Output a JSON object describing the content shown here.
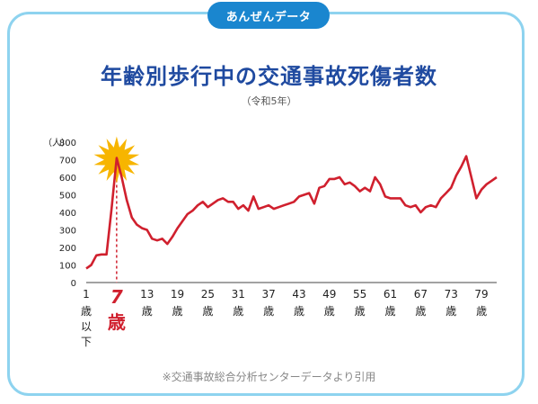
{
  "badge": "あんぜんデータ",
  "title": "年齢別歩行中の交通事故死傷者数",
  "subtitle": "（令和5年）",
  "source": "※交通事故総合分析センターデータより引用",
  "colors": {
    "line": "#d0202e",
    "title": "#1f4aa0",
    "badge": "#1a86cf",
    "border": "#8ed3ef",
    "burst": "#f7b500"
  },
  "chart_data": {
    "type": "line",
    "title": "年齢別歩行中の交通事故死傷者数",
    "subtitle": "（令和5年）",
    "ylabel": "（人）",
    "ylim": [
      0,
      800
    ],
    "yticks": [
      0,
      100,
      200,
      300,
      400,
      500,
      600,
      700,
      800
    ],
    "xlim": [
      1,
      82
    ],
    "xticks": [
      {
        "age": 1,
        "num": "1",
        "lines": [
          "歳",
          "以",
          "下"
        ]
      },
      {
        "age": 13,
        "num": "13",
        "lines": [
          "歳"
        ]
      },
      {
        "age": 19,
        "num": "19",
        "lines": [
          "歳"
        ]
      },
      {
        "age": 25,
        "num": "25",
        "lines": [
          "歳"
        ]
      },
      {
        "age": 31,
        "num": "31",
        "lines": [
          "歳"
        ]
      },
      {
        "age": 37,
        "num": "37",
        "lines": [
          "歳"
        ]
      },
      {
        "age": 43,
        "num": "43",
        "lines": [
          "歳"
        ]
      },
      {
        "age": 49,
        "num": "49",
        "lines": [
          "歳"
        ]
      },
      {
        "age": 55,
        "num": "55",
        "lines": [
          "歳"
        ]
      },
      {
        "age": 61,
        "num": "61",
        "lines": [
          "歳"
        ]
      },
      {
        "age": 67,
        "num": "67",
        "lines": [
          "歳"
        ]
      },
      {
        "age": 73,
        "num": "73",
        "lines": [
          "歳"
        ]
      },
      {
        "age": 79,
        "num": "79",
        "lines": [
          "歳"
        ]
      }
    ],
    "highlight": {
      "age": 7,
      "num": "7",
      "unit": "歳",
      "value": 710
    },
    "grid": false,
    "legend": "none",
    "x": [
      1,
      2,
      3,
      4,
      5,
      6,
      7,
      8,
      9,
      10,
      11,
      12,
      13,
      14,
      15,
      16,
      17,
      18,
      19,
      20,
      21,
      22,
      23,
      24,
      25,
      26,
      27,
      28,
      29,
      30,
      31,
      32,
      33,
      34,
      35,
      36,
      37,
      38,
      39,
      40,
      41,
      42,
      43,
      44,
      45,
      46,
      47,
      48,
      49,
      50,
      51,
      52,
      53,
      54,
      55,
      56,
      57,
      58,
      59,
      60,
      61,
      62,
      63,
      64,
      65,
      66,
      67,
      68,
      69,
      70,
      71,
      72,
      73,
      74,
      75,
      76,
      77,
      78,
      79,
      80,
      81,
      82
    ],
    "values": [
      80,
      100,
      155,
      160,
      160,
      420,
      710,
      600,
      470,
      370,
      330,
      310,
      300,
      250,
      240,
      250,
      220,
      260,
      310,
      350,
      390,
      410,
      440,
      460,
      430,
      450,
      470,
      480,
      460,
      460,
      420,
      440,
      410,
      490,
      420,
      430,
      440,
      420,
      430,
      440,
      450,
      460,
      490,
      500,
      510,
      450,
      540,
      550,
      590,
      590,
      600,
      560,
      570,
      550,
      520,
      540,
      520,
      600,
      560,
      490,
      480,
      480,
      480,
      440,
      430,
      440,
      400,
      430,
      440,
      430,
      480,
      510,
      540,
      610,
      660,
      720,
      600,
      480,
      530,
      560,
      580,
      600
    ]
  }
}
